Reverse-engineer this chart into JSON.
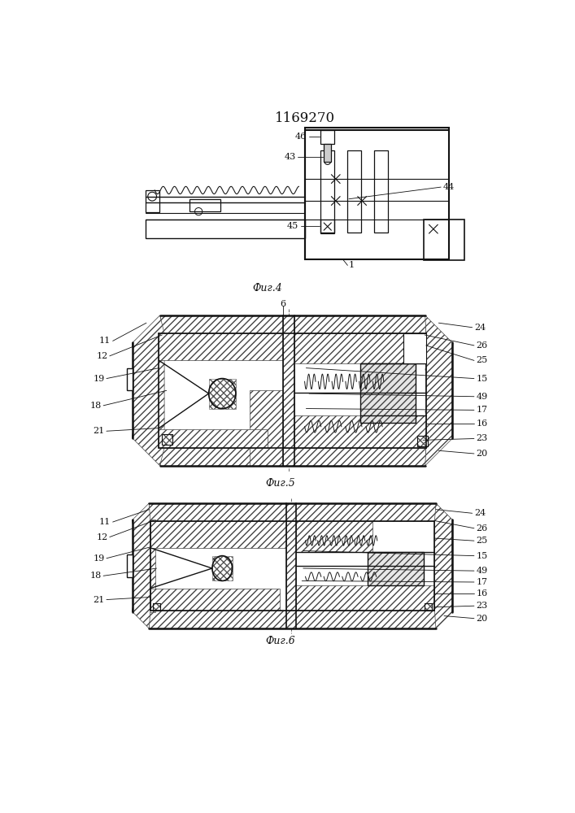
{
  "title": "1169270",
  "background": "#ffffff",
  "line_color": "#1a1a1a",
  "fig4_label": "Фиг.4",
  "fig5_label": "Фиг.5",
  "fig6_label": "Фиг.6"
}
